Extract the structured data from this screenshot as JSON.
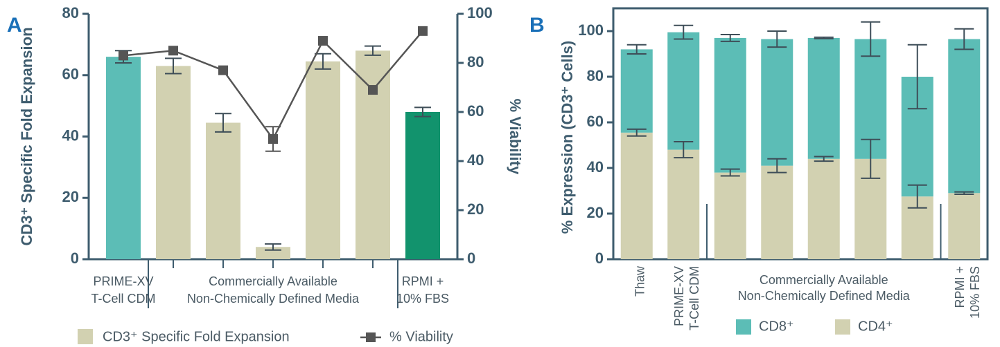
{
  "chart_data": [
    {
      "type": "bar",
      "panel": "A",
      "ylabel": "CD3⁺ Specific Fold Expansion",
      "y2label": "% Viability",
      "categories": [
        null,
        null,
        null,
        null,
        null,
        null,
        null
      ],
      "groups": [
        {
          "label": [
            "PRIME-XV",
            "T-Cell CDM"
          ],
          "count": 1
        },
        {
          "label": [
            "Commercially Available",
            "Non-Chemically Defined Media"
          ],
          "count": 5
        },
        {
          "label": [
            "RPMI +",
            "10% FBS"
          ],
          "count": 1
        }
      ],
      "series": [
        {
          "name": "CD3⁺ Specific Fold Expansion",
          "type": "bar",
          "color": "#d2d1b1",
          "colors": [
            "#5cbdb6",
            "#d2d1b1",
            "#d2d1b1",
            "#d2d1b1",
            "#d2d1b1",
            "#d2d1b1",
            "#12936d"
          ],
          "values": [
            66,
            63,
            44.5,
            4,
            64.5,
            68,
            48
          ],
          "errors": [
            2,
            2.5,
            3,
            1,
            2.5,
            1.5,
            1.5
          ]
        },
        {
          "name": "% Viability",
          "type": "line",
          "axis": "y2",
          "color": "#555555",
          "values": [
            83,
            85,
            77,
            49,
            89,
            69,
            93
          ],
          "errors": [
            null,
            null,
            null,
            5,
            null,
            null,
            null
          ]
        }
      ],
      "ylim": [
        0,
        80
      ],
      "yticks": [
        0,
        20,
        40,
        60,
        80
      ],
      "y2lim": [
        0,
        100
      ],
      "y2ticks": [
        0,
        20,
        40,
        60,
        80,
        100
      ],
      "grid": false
    },
    {
      "type": "stacked_bar",
      "panel": "B",
      "ylabel": "% Expression (CD3⁺ Cells)",
      "categories": [
        [
          "Thaw"
        ],
        [
          "PRIME-XV",
          "T-Cell CDM"
        ],
        null,
        null,
        null,
        null,
        null,
        [
          "RPMI +",
          "10% FBS"
        ]
      ],
      "groups": [
        {
          "label": null,
          "count": 2
        },
        {
          "label": [
            "Commercially Available",
            "Non-Chemically Defined Media"
          ],
          "count": 5
        },
        {
          "label": null,
          "count": 1
        }
      ],
      "series": [
        {
          "name": "CD4⁺",
          "color": "#d2d1b1",
          "values": [
            55.5,
            48,
            38,
            41,
            44,
            44,
            27.5,
            29
          ],
          "errors": [
            1.5,
            3.5,
            1.5,
            3,
            1,
            8.5,
            5,
            0.5
          ]
        },
        {
          "name": "CD8⁺",
          "color": "#5cbdb6",
          "values": [
            36.5,
            51.5,
            59,
            55.5,
            53,
            52.5,
            52.5,
            67.5
          ],
          "errors": [
            2,
            3,
            1.5,
            3.5,
            0.3,
            7.5,
            14,
            4.5
          ]
        }
      ],
      "ylim": [
        0,
        110
      ],
      "yticks": [
        0,
        20,
        40,
        60,
        80,
        100
      ],
      "grid": false
    }
  ]
}
